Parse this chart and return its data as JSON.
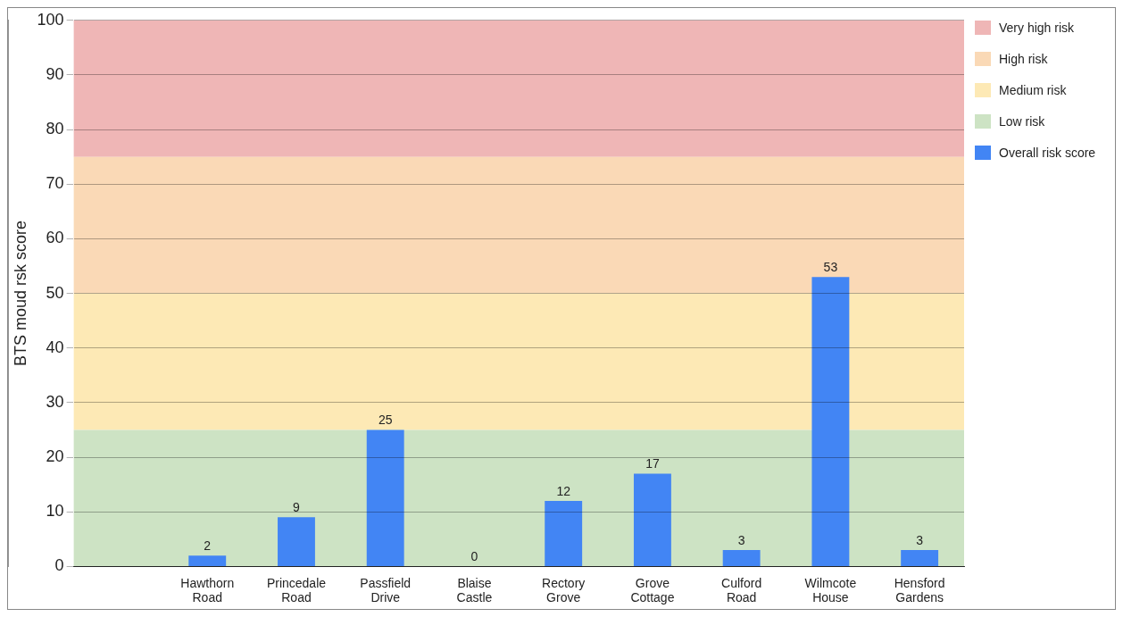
{
  "chart_data": {
    "type": "bar",
    "ylabel": "BTS moud rsk score",
    "categories": [
      null,
      "Hawthorn Road",
      "Princedale Road",
      "Passfield Drive",
      "Blaise Castle",
      "Rectory Grove",
      "Grove Cottage",
      "Culford Road",
      "Wilmcote House",
      "Hensford Gardens"
    ],
    "series": [
      {
        "name": "Overall risk score",
        "color": "#4285f4",
        "values": [
          null,
          2,
          9,
          25,
          0,
          12,
          17,
          3,
          53,
          3
        ]
      }
    ],
    "ylim": [
      0,
      100
    ],
    "yticks": [
      0,
      10,
      20,
      30,
      40,
      50,
      60,
      70,
      80,
      90,
      100
    ],
    "grid": "y",
    "data_labels": true,
    "legend": "top right",
    "bands": [
      {
        "axis": "y",
        "from": 75,
        "to": 100,
        "label": "Very high risk",
        "color": "#efb6b6"
      },
      {
        "axis": "y",
        "from": 50,
        "to": 75,
        "label": "High risk",
        "color": "#fad9b6"
      },
      {
        "axis": "y",
        "from": 25,
        "to": 50,
        "label": "Medium risk",
        "color": "#fde9b5"
      },
      {
        "axis": "y",
        "from": 0,
        "to": 25,
        "label": "Low risk",
        "color": "#cde3c4"
      }
    ]
  }
}
